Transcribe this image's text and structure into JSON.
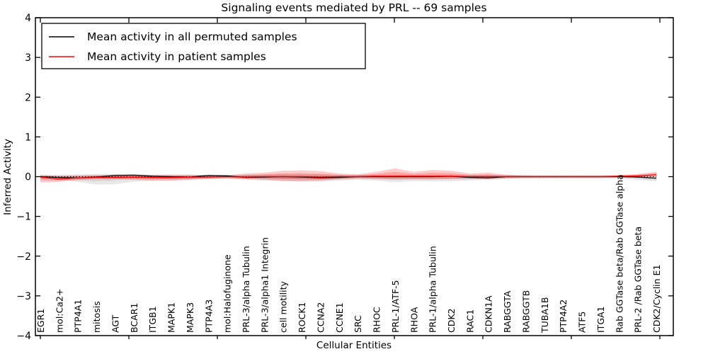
{
  "title": "Signaling events mediated by PRL -- 69 samples",
  "xlabel": "Cellular Entities",
  "ylabel": "Inferred Activity",
  "legend": {
    "items": [
      {
        "label": "Mean activity in all permuted samples",
        "color": "#000000"
      },
      {
        "label": "Mean activity in patient samples",
        "color": "#ff0000"
      }
    ]
  },
  "chart_data": {
    "type": "line",
    "title": "Signaling events mediated by PRL -- 69 samples",
    "xlabel": "Cellular Entities",
    "ylabel": "Inferred Activity",
    "ylim": [
      -4,
      4
    ],
    "ytick_values": [
      4,
      3,
      2,
      1,
      0,
      -1,
      -2,
      -3,
      -4
    ],
    "ytick_labels": [
      "4",
      "3",
      "2",
      "1",
      "0",
      "−1",
      "−2",
      "−3",
      "−4"
    ],
    "grid": false,
    "legend_position": "upper-left-inside",
    "zero_line": 0,
    "categories": [
      "EGR1",
      "mol:Ca2+",
      "PTP4A1",
      "mitosis",
      "AGT",
      "BCAR1",
      "ITGB1",
      "MAPK1",
      "MAPK3",
      "PTP4A3",
      "mol:Halofuginone",
      "PRL-3/alpha Tubulin",
      "PRL-3/alpha1 Integrin",
      "cell motility",
      "ROCK1",
      "CCNA2",
      "CCNE1",
      "SRC",
      "RHOC",
      "PRL-1/ATF-5",
      "RHOA",
      "PRL-1/alpha Tubulin",
      "CDK2",
      "RAC1",
      "CDKN1A",
      "RABGGTA",
      "RABGGTB",
      "TUBA1B",
      "PTP4A2",
      "ATF5",
      "ITGA1",
      "Rab GGTase beta/Rab GGTase alpha",
      "PRL-2 /Rab GGTase beta",
      "CDK2/Cyclin E1"
    ],
    "series": [
      {
        "name": "Mean activity in all permuted samples",
        "color": "#000000",
        "values": [
          0.0,
          -0.02,
          -0.03,
          -0.01,
          0.03,
          0.04,
          0.01,
          0.0,
          -0.01,
          0.03,
          0.02,
          -0.02,
          -0.01,
          0.0,
          -0.01,
          -0.03,
          -0.02,
          0.0,
          0.0,
          0.0,
          0.0,
          0.0,
          0.01,
          -0.02,
          -0.03,
          0.0,
          0.0,
          0.0,
          0.0,
          0.0,
          0.0,
          0.0,
          -0.01,
          -0.04
        ]
      },
      {
        "name": "Mean activity in patient samples",
        "color": "#ff0000",
        "values": [
          -0.01,
          -0.06,
          -0.03,
          -0.02,
          -0.02,
          -0.01,
          -0.02,
          -0.02,
          -0.01,
          -0.01,
          0.0,
          -0.01,
          0.0,
          0.0,
          0.0,
          -0.01,
          0.0,
          0.0,
          0.01,
          0.01,
          0.01,
          0.01,
          0.01,
          0.0,
          0.0,
          0.0,
          0.0,
          0.0,
          0.0,
          0.0,
          0.0,
          0.01,
          0.02,
          0.05
        ]
      }
    ],
    "bands": [
      {
        "name": "permuted-samples-range",
        "series": 0,
        "color": "rgba(0,0,0,0.09)",
        "lower": [
          -0.05,
          -0.07,
          -0.13,
          -0.2,
          -0.19,
          -0.13,
          -0.1,
          -0.12,
          -0.08,
          -0.05,
          -0.05,
          -0.08,
          -0.1,
          -0.11,
          -0.12,
          -0.13,
          -0.1,
          -0.08,
          -0.1,
          -0.14,
          -0.11,
          -0.12,
          -0.12,
          -0.1,
          -0.08,
          -0.06,
          -0.05,
          -0.04,
          -0.04,
          -0.04,
          -0.04,
          -0.05,
          -0.08,
          -0.12
        ],
        "upper": [
          0.05,
          0.05,
          0.06,
          0.07,
          0.07,
          0.06,
          0.05,
          0.05,
          0.05,
          0.04,
          0.04,
          0.05,
          0.06,
          0.06,
          0.06,
          0.06,
          0.05,
          0.05,
          0.05,
          0.05,
          0.05,
          0.05,
          0.05,
          0.05,
          0.05,
          0.04,
          0.04,
          0.03,
          0.03,
          0.03,
          0.03,
          0.03,
          0.03,
          0.02
        ]
      },
      {
        "name": "patient-samples-range",
        "series": 1,
        "color": "rgba(255,0,0,0.20)",
        "lower": [
          -0.15,
          -0.13,
          -0.09,
          -0.06,
          -0.06,
          -0.08,
          -0.1,
          -0.09,
          -0.08,
          -0.06,
          -0.05,
          -0.06,
          -0.08,
          -0.11,
          -0.12,
          -0.1,
          -0.07,
          -0.05,
          -0.06,
          -0.07,
          -0.07,
          -0.07,
          -0.06,
          -0.05,
          -0.06,
          -0.04,
          -0.03,
          -0.03,
          -0.03,
          -0.03,
          -0.03,
          -0.02,
          -0.02,
          -0.01
        ],
        "upper": [
          0.04,
          0.02,
          0.03,
          0.04,
          0.05,
          0.05,
          0.05,
          0.05,
          0.05,
          0.04,
          0.04,
          0.08,
          0.1,
          0.15,
          0.16,
          0.14,
          0.08,
          0.06,
          0.12,
          0.21,
          0.12,
          0.17,
          0.15,
          0.08,
          0.1,
          0.05,
          0.03,
          0.03,
          0.03,
          0.03,
          0.03,
          0.04,
          0.07,
          0.12
        ]
      }
    ]
  }
}
